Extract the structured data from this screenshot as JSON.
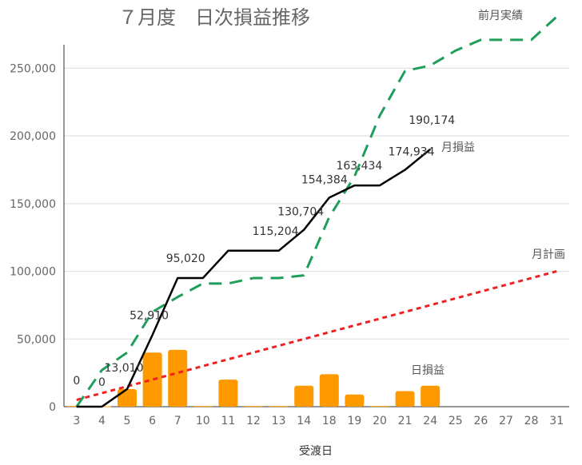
{
  "chart_data": {
    "type": "bar+line",
    "title": "７月度　日次損益推移",
    "xlabel": "受渡日",
    "ylabel": "",
    "ylim": [
      0,
      265000
    ],
    "yticks": [
      0,
      50000,
      100000,
      150000,
      200000,
      250000
    ],
    "ytick_labels": [
      "0",
      "50,000",
      "100,000",
      "150,000",
      "200,000",
      "250,000"
    ],
    "grid": true,
    "categories": [
      "3",
      "4",
      "5",
      "6",
      "7",
      "10",
      "11",
      "12",
      "13",
      "14",
      "18",
      "19",
      "20",
      "21",
      "24",
      "25",
      "26",
      "27",
      "28",
      "31"
    ],
    "series": [
      {
        "name": "日損益",
        "type": "bar",
        "color": "#ff9900",
        "values": [
          500,
          300,
          13000,
          40000,
          42000,
          500,
          20000,
          500,
          500,
          15500,
          24000,
          9000,
          500,
          11500,
          15500,
          null,
          null,
          null,
          null,
          null
        ]
      },
      {
        "name": "月損益",
        "type": "line",
        "style": "solid",
        "color": "#000000",
        "values": [
          0,
          0,
          13010,
          52910,
          95020,
          95020,
          115204,
          115204,
          115204,
          130704,
          154384,
          163434,
          163434,
          174934,
          190174,
          null,
          null,
          null,
          null,
          null
        ],
        "data_labels": [
          "0",
          "0",
          "13,010",
          "52,910",
          "95,020",
          "",
          "",
          "",
          "115,204",
          "130,704",
          "154,384",
          "163,434",
          "",
          "174,934",
          "190,174",
          "",
          "",
          "",
          "",
          ""
        ]
      },
      {
        "name": "前月実績",
        "type": "line",
        "style": "dashed",
        "color": "#1e9e5a",
        "values": [
          0,
          27000,
          40000,
          70000,
          81000,
          91000,
          91000,
          95000,
          95000,
          97000,
          140000,
          170000,
          215000,
          248000,
          252000,
          263000,
          271000,
          271000,
          271000,
          288000
        ]
      },
      {
        "name": "月計画",
        "type": "line",
        "style": "dotted",
        "color": "#ee2222",
        "values": [
          5000,
          10000,
          15000,
          20000,
          25000,
          30000,
          35000,
          40000,
          45000,
          50000,
          55000,
          60000,
          65000,
          70000,
          75000,
          80000,
          85000,
          90000,
          95000,
          100000
        ]
      }
    ]
  }
}
